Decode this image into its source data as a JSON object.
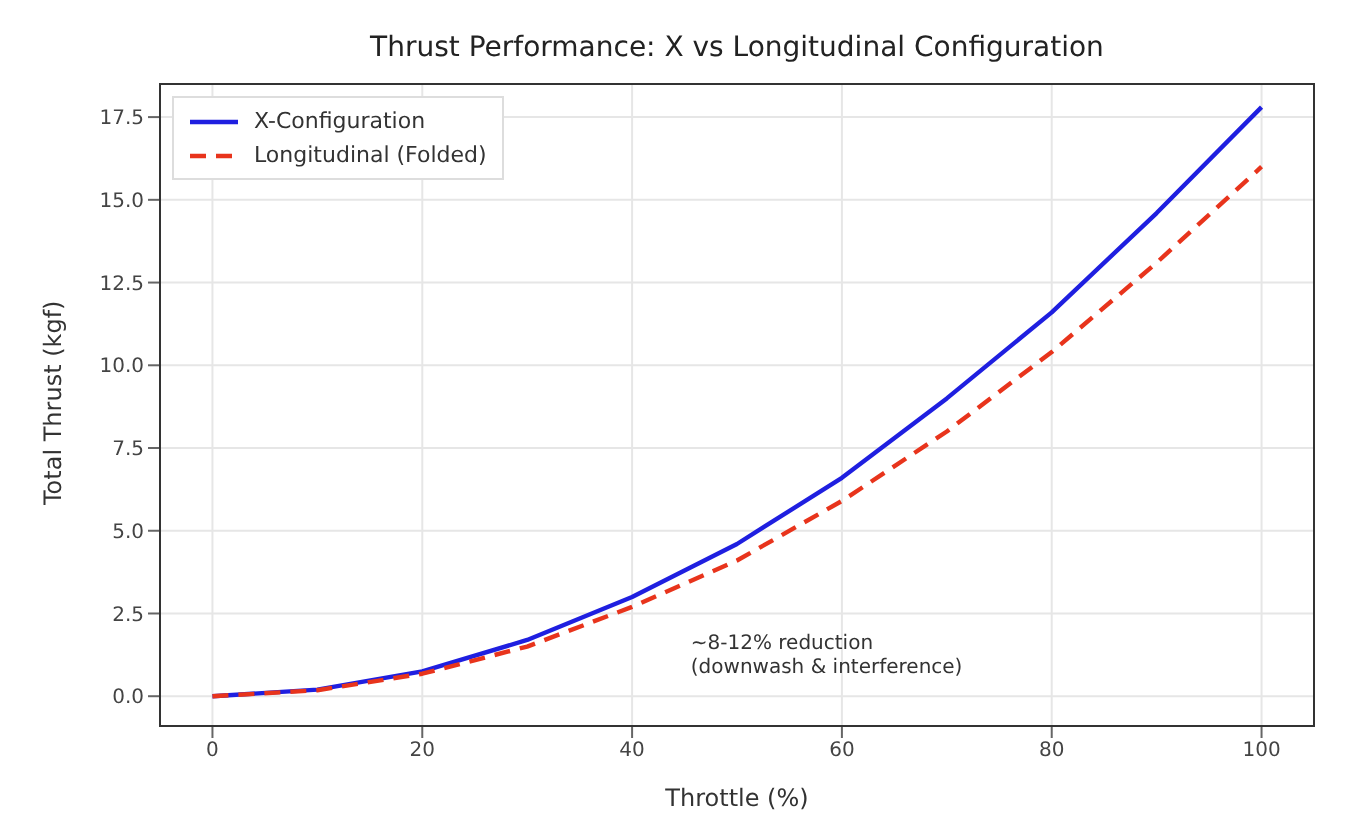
{
  "chart_data": {
    "type": "line",
    "title": "Thrust Performance: X vs Longitudinal Configuration",
    "xlabel": "Throttle (%)",
    "ylabel": "Total Thrust (kgf)",
    "x": [
      0,
      10,
      20,
      30,
      40,
      50,
      60,
      70,
      80,
      90,
      100
    ],
    "series": [
      {
        "name": "X-Configuration",
        "color": "#1f1fe0",
        "line_style": "solid",
        "values": [
          0,
          0.2,
          0.75,
          1.7,
          3.0,
          4.6,
          6.6,
          9.0,
          11.6,
          14.6,
          17.8
        ]
      },
      {
        "name": "Longitudinal (Folded)",
        "color": "#e8341c",
        "line_style": "dashed",
        "values": [
          0,
          0.18,
          0.68,
          1.5,
          2.7,
          4.1,
          5.9,
          8.0,
          10.4,
          13.1,
          16.0
        ]
      }
    ],
    "xlim": [
      -5,
      105
    ],
    "xticks": [
      0,
      20,
      40,
      60,
      80,
      100
    ],
    "ylim": [
      -0.9,
      18.5
    ],
    "yticks": [
      {
        "value": 0,
        "label": "0.0"
      },
      2.5,
      {
        "value": 5,
        "label": "5.0"
      },
      7.5,
      {
        "value": 10,
        "label": "10.0"
      },
      12.5,
      {
        "value": 15,
        "label": "15.0"
      },
      17.5
    ],
    "grid": true,
    "legend": "top left",
    "marker": "none",
    "annotations": [
      "~8-12% reduction\n(downwash & interference)"
    ]
  }
}
